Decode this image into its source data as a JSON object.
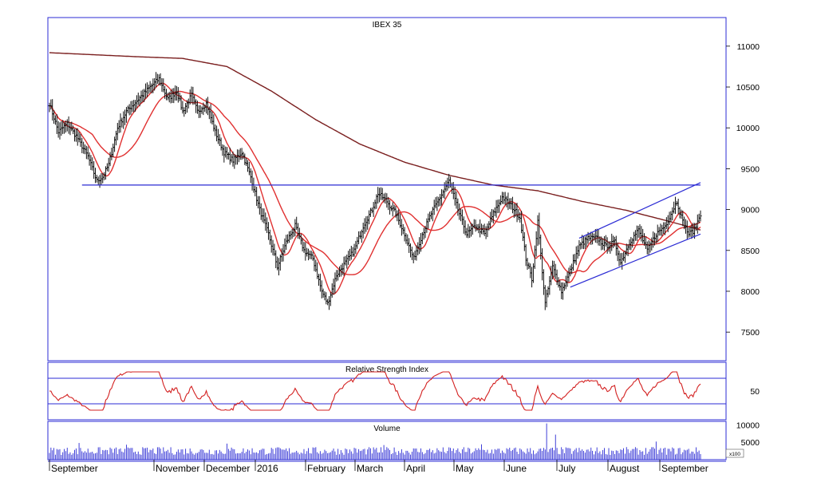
{
  "chart_data": [
    {
      "type": "ohlc-bar",
      "title": "IBEX 35",
      "yticks": [
        7500,
        8000,
        8500,
        9000,
        9500,
        10000,
        10500,
        11000
      ],
      "ylim": [
        7150,
        11350
      ],
      "months": [
        "September",
        "November",
        "December",
        "2016",
        "February",
        "March",
        "April",
        "May",
        "June",
        "July",
        "August",
        "September"
      ],
      "close_anchors": [
        [
          0,
          10300
        ],
        [
          6,
          9950
        ],
        [
          12,
          10050
        ],
        [
          18,
          9900
        ],
        [
          26,
          9650
        ],
        [
          32,
          9350
        ],
        [
          36,
          9400
        ],
        [
          40,
          9550
        ],
        [
          46,
          10000
        ],
        [
          52,
          10200
        ],
        [
          60,
          10350
        ],
        [
          68,
          10500
        ],
        [
          74,
          10600
        ],
        [
          80,
          10350
        ],
        [
          86,
          10450
        ],
        [
          90,
          10200
        ],
        [
          96,
          10400
        ],
        [
          100,
          10200
        ],
        [
          106,
          10300
        ],
        [
          112,
          9950
        ],
        [
          118,
          9700
        ],
        [
          124,
          9600
        ],
        [
          130,
          9700
        ],
        [
          136,
          9400
        ],
        [
          142,
          9000
        ],
        [
          148,
          8700
        ],
        [
          154,
          8300
        ],
        [
          160,
          8600
        ],
        [
          166,
          8800
        ],
        [
          172,
          8500
        ],
        [
          178,
          8400
        ],
        [
          184,
          8000
        ],
        [
          188,
          7850
        ],
        [
          194,
          8200
        ],
        [
          200,
          8350
        ],
        [
          206,
          8500
        ],
        [
          212,
          8800
        ],
        [
          218,
          9000
        ],
        [
          222,
          9200
        ],
        [
          228,
          9100
        ],
        [
          234,
          8950
        ],
        [
          240,
          8700
        ],
        [
          246,
          8400
        ],
        [
          252,
          8700
        ],
        [
          258,
          8950
        ],
        [
          264,
          9150
        ],
        [
          270,
          9350
        ],
        [
          276,
          9000
        ],
        [
          282,
          8700
        ],
        [
          288,
          8800
        ],
        [
          294,
          8700
        ],
        [
          300,
          8950
        ],
        [
          306,
          9150
        ],
        [
          312,
          9050
        ],
        [
          318,
          8900
        ],
        [
          322,
          8400
        ],
        [
          326,
          8150
        ],
        [
          330,
          8850
        ],
        [
          335,
          7850
        ],
        [
          340,
          8300
        ],
        [
          346,
          8000
        ],
        [
          352,
          8250
        ],
        [
          358,
          8550
        ],
        [
          364,
          8650
        ],
        [
          370,
          8650
        ],
        [
          376,
          8550
        ],
        [
          382,
          8600
        ],
        [
          386,
          8350
        ],
        [
          392,
          8600
        ],
        [
          398,
          8750
        ],
        [
          404,
          8500
        ],
        [
          410,
          8700
        ],
        [
          416,
          8800
        ],
        [
          420,
          8950
        ],
        [
          424,
          9100
        ],
        [
          428,
          8850
        ],
        [
          432,
          8700
        ],
        [
          436,
          8750
        ],
        [
          440,
          8950
        ]
      ],
      "sma_short": {
        "period": 10,
        "color": "#e03030"
      },
      "sma_medium": {
        "period": 30,
        "color": "#e03030"
      },
      "sma_long": {
        "color": "#7a1e1e",
        "anchors": [
          [
            0,
            10920
          ],
          [
            60,
            10870
          ],
          [
            90,
            10850
          ],
          [
            120,
            10750
          ],
          [
            150,
            10450
          ],
          [
            180,
            10100
          ],
          [
            210,
            9800
          ],
          [
            240,
            9580
          ],
          [
            270,
            9420
          ],
          [
            300,
            9300
          ],
          [
            330,
            9230
          ],
          [
            360,
            9100
          ],
          [
            390,
            8990
          ],
          [
            420,
            8850
          ],
          [
            440,
            8750
          ]
        ]
      },
      "lines": [
        {
          "name": "support-9300",
          "from": [
            22,
            9300
          ],
          "to": [
            440,
            9300
          ],
          "color": "#2b2bd4"
        },
        {
          "name": "channel-upper",
          "from": [
            358,
            8650
          ],
          "to": [
            440,
            9330
          ],
          "color": "#2b2bd4"
        },
        {
          "name": "channel-lower",
          "from": [
            352,
            8050
          ],
          "to": [
            440,
            8700
          ],
          "color": "#2b2bd4"
        }
      ]
    },
    {
      "type": "line",
      "title": "Relative Strength Index",
      "yticks": [
        50
      ],
      "ylim": [
        5,
        95
      ],
      "levels": [
        70,
        30
      ],
      "period": 14,
      "color": "#d32020"
    },
    {
      "type": "bar",
      "title": "Volume",
      "yticks": [
        5000,
        10000
      ],
      "ylim": [
        0,
        11000
      ],
      "unit_label": "x100",
      "base": 2500,
      "spikes": [
        [
          20,
          4800
        ],
        [
          52,
          4300
        ],
        [
          120,
          4600
        ],
        [
          226,
          4200
        ],
        [
          292,
          4400
        ],
        [
          336,
          10400
        ],
        [
          342,
          7200
        ],
        [
          410,
          5200
        ]
      ],
      "color": "#2b2bd4"
    }
  ]
}
